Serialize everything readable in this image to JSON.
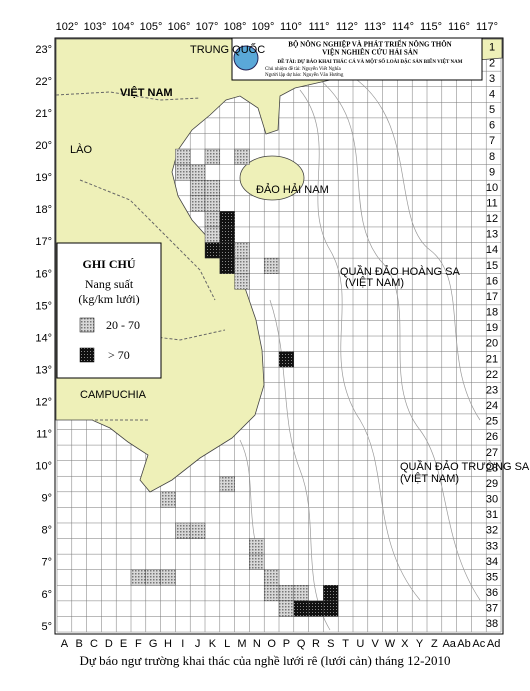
{
  "header": {
    "lines": [
      "BỘ NÔNG NGHIỆP VÀ PHÁT TRIỂN NÔNG THÔN",
      "VIỆN NGHIÊN CỨU HẢI SẢN",
      "ĐỀ TÀI: DỰ BÁO KHAI THÁC CÁ VÀ MỘT SỐ LOÀI ĐẶC SẢN BIỂN VIỆT NAM",
      "Chủ nhiệm đề tài: Nguyễn Viết Nghĩa",
      "Người lập dự báo: Nguyễn Văn Hướng"
    ]
  },
  "lon_labels": [
    "102°",
    "103°",
    "104°",
    "105°",
    "106°",
    "107°",
    "108°",
    "109°",
    "110°",
    "111°",
    "112°",
    "113°",
    "114°",
    "115°",
    "116°",
    "117°"
  ],
  "lat_labels": [
    "23°",
    "22°",
    "21°",
    "20°",
    "19°",
    "18°",
    "17°",
    "16°",
    "15°",
    "14°",
    "13°",
    "12°",
    "11°",
    "10°",
    "9°",
    "8°",
    "7°",
    "6°",
    "5°"
  ],
  "row_labels": [
    "1",
    "2",
    "3",
    "4",
    "5",
    "6",
    "7",
    "8",
    "9",
    "10",
    "11",
    "12",
    "13",
    "14",
    "15",
    "16",
    "17",
    "18",
    "19",
    "20",
    "21",
    "22",
    "23",
    "24",
    "25",
    "26",
    "27",
    "28",
    "29",
    "30",
    "31",
    "32",
    "33",
    "34",
    "35",
    "36",
    "37",
    "38"
  ],
  "col_labels": [
    "A",
    "B",
    "C",
    "D",
    "E",
    "F",
    "G",
    "H",
    "I",
    "J",
    "K",
    "L",
    "M",
    "N",
    "O",
    "P",
    "Q",
    "R",
    "S",
    "T",
    "U",
    "V",
    "W",
    "X",
    "Y",
    "Z",
    "Aa",
    "Ab",
    "Ac",
    "Ad"
  ],
  "legend": {
    "title": "GHI CHÚ",
    "subtitle": "Nang suất",
    "unit": "(kg/km lưới)",
    "items": [
      "20 - 70",
      "> 70"
    ]
  },
  "places": [
    "TRUNG QUỐC",
    "VIỆT NAM",
    "LÀO",
    "CAMPUCHIA",
    "ĐẢO HẢI NAM",
    "QUẦN ĐẢO HOÀNG SA",
    "(VIỆT NAM)",
    "QUẦN ĐẢO TRƯỜNG SA",
    "(VIỆT NAM)"
  ],
  "cells": [
    {
      "col": "I",
      "row": 8,
      "level": 0
    },
    {
      "col": "K",
      "row": 8,
      "level": 0
    },
    {
      "col": "M",
      "row": 8,
      "level": 0
    },
    {
      "col": "I",
      "row": 9,
      "level": 0
    },
    {
      "col": "J",
      "row": 9,
      "level": 0
    },
    {
      "col": "J",
      "row": 10,
      "level": 0
    },
    {
      "col": "K",
      "row": 10,
      "level": 0
    },
    {
      "col": "J",
      "row": 11,
      "level": 0
    },
    {
      "col": "K",
      "row": 11,
      "level": 0
    },
    {
      "col": "K",
      "row": 12,
      "level": 0
    },
    {
      "col": "L",
      "row": 12,
      "level": 1
    },
    {
      "col": "K",
      "row": 13,
      "level": 0
    },
    {
      "col": "L",
      "row": 13,
      "level": 1
    },
    {
      "col": "K",
      "row": 14,
      "level": 1
    },
    {
      "col": "L",
      "row": 14,
      "level": 1
    },
    {
      "col": "M",
      "row": 14,
      "level": 0
    },
    {
      "col": "L",
      "row": 15,
      "level": 1
    },
    {
      "col": "M",
      "row": 15,
      "level": 0
    },
    {
      "col": "O",
      "row": 15,
      "level": 0
    },
    {
      "col": "M",
      "row": 16,
      "level": 0
    },
    {
      "col": "P",
      "row": 21,
      "level": 1
    },
    {
      "col": "L",
      "row": 29,
      "level": 0
    },
    {
      "col": "H",
      "row": 30,
      "level": 0
    },
    {
      "col": "I",
      "row": 32,
      "level": 0
    },
    {
      "col": "J",
      "row": 32,
      "level": 0
    },
    {
      "col": "N",
      "row": 33,
      "level": 0
    },
    {
      "col": "N",
      "row": 34,
      "level": 0
    },
    {
      "col": "F",
      "row": 35,
      "level": 0
    },
    {
      "col": "G",
      "row": 35,
      "level": 0
    },
    {
      "col": "H",
      "row": 35,
      "level": 0
    },
    {
      "col": "O",
      "row": 35,
      "level": 0
    },
    {
      "col": "O",
      "row": 36,
      "level": 0
    },
    {
      "col": "P",
      "row": 36,
      "level": 0
    },
    {
      "col": "Q",
      "row": 36,
      "level": 0
    },
    {
      "col": "S",
      "row": 36,
      "level": 1
    },
    {
      "col": "P",
      "row": 37,
      "level": 0
    },
    {
      "col": "Q",
      "row": 37,
      "level": 1
    },
    {
      "col": "R",
      "row": 37,
      "level": 1
    },
    {
      "col": "S",
      "row": 37,
      "level": 1
    }
  ],
  "caption": "Dự báo ngư trường khai thác của nghề lưới rê (lưới cản) tháng 12-2010"
}
